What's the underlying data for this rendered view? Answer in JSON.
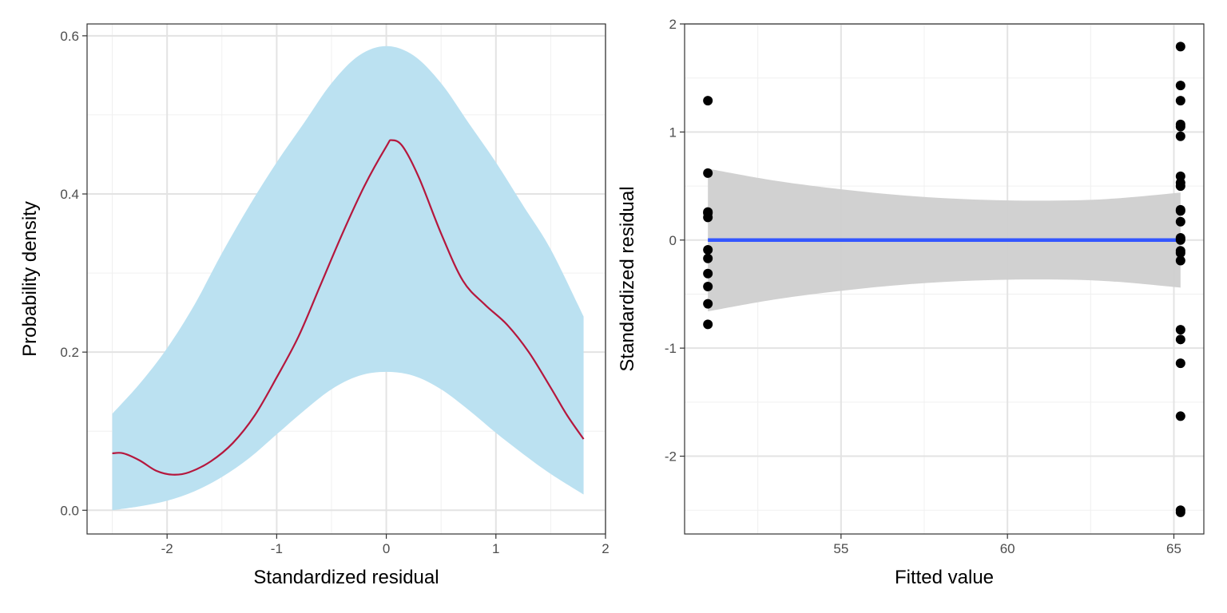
{
  "chart_data": [
    {
      "type": "line",
      "xlabel": "Standardized residual",
      "ylabel": "Probability density",
      "xlim": [
        -2.73,
        2.0
      ],
      "ylim": [
        -0.03,
        0.615
      ],
      "xticks": [
        -2,
        -1,
        0,
        1,
        2
      ],
      "xtick_labels": [
        "-2",
        "-1",
        "0",
        "1",
        "2"
      ],
      "yticks": [
        0.0,
        0.2,
        0.4,
        0.6
      ],
      "ytick_labels": [
        "0.0",
        "0.2",
        "0.4",
        "0.6"
      ],
      "grid": true,
      "colors": {
        "band": "#bbe1f1",
        "line": "#b5173d"
      },
      "band": {
        "x": [
          -2.5,
          -2.25,
          -2.0,
          -1.75,
          -1.5,
          -1.25,
          -1.0,
          -0.75,
          -0.5,
          -0.25,
          0.0,
          0.25,
          0.5,
          0.75,
          1.0,
          1.25,
          1.5,
          1.8
        ],
        "lower": [
          0.0,
          0.005,
          0.012,
          0.024,
          0.042,
          0.066,
          0.096,
          0.126,
          0.153,
          0.17,
          0.175,
          0.17,
          0.153,
          0.127,
          0.098,
          0.071,
          0.046,
          0.02
        ],
        "upper": [
          0.122,
          0.16,
          0.205,
          0.26,
          0.325,
          0.385,
          0.44,
          0.49,
          0.54,
          0.575,
          0.587,
          0.575,
          0.54,
          0.49,
          0.44,
          0.385,
          0.33,
          0.245
        ]
      },
      "series": [
        {
          "x": [
            -2.5,
            -2.4,
            -2.25,
            -2.1,
            -1.95,
            -1.8,
            -1.6,
            -1.4,
            -1.2,
            -1.0,
            -0.8,
            -0.6,
            -0.4,
            -0.2,
            0.0,
            0.05,
            0.15,
            0.3,
            0.5,
            0.7,
            0.9,
            1.1,
            1.3,
            1.5,
            1.65,
            1.8
          ],
          "y": [
            0.072,
            0.072,
            0.063,
            0.05,
            0.045,
            0.048,
            0.062,
            0.085,
            0.12,
            0.168,
            0.22,
            0.285,
            0.35,
            0.41,
            0.46,
            0.468,
            0.46,
            0.42,
            0.35,
            0.29,
            0.26,
            0.235,
            0.2,
            0.155,
            0.12,
            0.09
          ]
        }
      ]
    },
    {
      "type": "scatter",
      "xlabel": "Fitted value",
      "ylabel": "Standardized residual",
      "xlim": [
        50.3,
        65.9
      ],
      "ylim": [
        -2.72,
        2.0
      ],
      "xticks": [
        55,
        60,
        65
      ],
      "xtick_labels": [
        "55",
        "60",
        "65"
      ],
      "yticks": [
        -2,
        -1,
        0,
        1,
        2
      ],
      "ytick_labels": [
        "-2",
        "-1",
        "0",
        "1",
        "2"
      ],
      "grid": true,
      "colors": {
        "points": "#000000",
        "fit": "#3356ff",
        "se_band": "#cfcfcf"
      },
      "points": {
        "x": [
          51.0,
          51.0,
          51.0,
          51.0,
          51.0,
          51.0,
          51.0,
          51.0,
          51.0,
          51.0,
          51.0,
          65.2,
          65.2,
          65.2,
          65.2,
          65.2,
          65.2,
          65.2,
          65.2,
          65.2,
          65.2,
          65.2,
          65.2,
          65.2,
          65.2,
          65.2,
          65.2,
          65.2,
          65.2,
          65.2,
          65.2,
          65.2,
          65.2,
          65.2,
          65.2
        ],
        "y": [
          1.29,
          0.62,
          0.26,
          0.21,
          -0.09,
          -0.17,
          -0.31,
          -0.43,
          -0.59,
          -0.78,
          0.25,
          1.79,
          1.43,
          1.29,
          1.07,
          1.05,
          0.96,
          0.59,
          0.53,
          0.5,
          0.28,
          0.27,
          0.17,
          0.01,
          0.0,
          -0.1,
          -0.12,
          -0.19,
          -0.83,
          -0.92,
          -1.14,
          -1.63,
          -2.5,
          -2.52,
          0.02
        ]
      },
      "fit": {
        "x": [
          51.0,
          65.2
        ],
        "y": [
          0.0,
          0.0
        ]
      },
      "se_band": {
        "x": [
          51.0,
          53.0,
          55.0,
          57.0,
          59.0,
          61.0,
          63.0,
          65.2
        ],
        "upper": [
          0.66,
          0.55,
          0.47,
          0.41,
          0.375,
          0.365,
          0.38,
          0.44
        ],
        "lower": [
          -0.66,
          -0.55,
          -0.47,
          -0.41,
          -0.375,
          -0.365,
          -0.38,
          -0.44
        ]
      }
    }
  ]
}
